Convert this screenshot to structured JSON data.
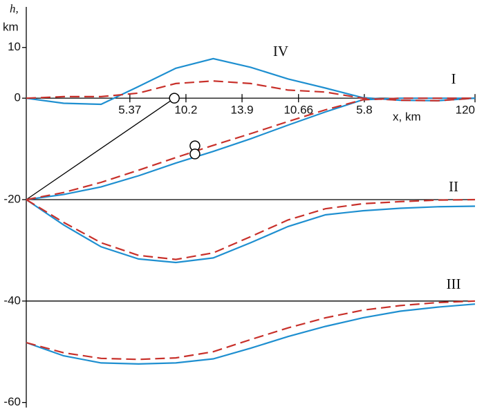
{
  "chart_data": {
    "type": "line",
    "y_label": [
      "h,",
      "km"
    ],
    "x_label": "x, km",
    "annotations": [
      "I",
      "II",
      "III",
      "IV"
    ],
    "xlim": [
      0,
      120
    ],
    "ylim": [
      -61,
      18
    ],
    "yticks": [
      -60,
      -40,
      -20,
      0,
      10
    ],
    "xticks": [
      {
        "value": 27.7,
        "label": "5.37"
      },
      {
        "value": 42.7,
        "label": "10.2"
      },
      {
        "value": 57.7,
        "label": "13.9"
      },
      {
        "value": 72.8,
        "label": "10.66"
      },
      {
        "value": 90.4,
        "label": "5.8"
      },
      120
    ],
    "hlines": [
      0,
      -20,
      -40
    ],
    "segment": {
      "x": [
        0,
        39.6
      ],
      "y": [
        -20,
        0
      ]
    },
    "markers": {
      "x": [
        39.6,
        45.1,
        45.1
      ],
      "y": [
        0,
        -9.4,
        -11
      ]
    },
    "x": [
      0,
      10,
      20,
      30,
      40,
      50,
      60,
      70,
      80,
      90,
      100,
      110,
      120
    ],
    "series": [
      {
        "color": "#1e8fd0",
        "dashed": false,
        "values": [
          0,
          -1,
          -1.2,
          2.3,
          5.9,
          7.8,
          6.1,
          3.8,
          2,
          0.1,
          -0.4,
          -0.5,
          0
        ]
      },
      {
        "color": "#c8302a",
        "dashed": true,
        "values": [
          0,
          0.3,
          0.3,
          1,
          2.9,
          3.4,
          2.9,
          1.6,
          1.2,
          0,
          -0.4,
          -0.5,
          0
        ]
      },
      {
        "color": "#1e8fd0",
        "dashed": false,
        "values": [
          -20,
          -19,
          -17.5,
          -15.3,
          -12.8,
          -10.5,
          -8,
          -5.3,
          -2.7,
          -0.3,
          0,
          0,
          0
        ]
      },
      {
        "color": "#c8302a",
        "dashed": true,
        "values": [
          -20,
          -18.6,
          -16.6,
          -14.2,
          -11.7,
          -9.3,
          -7,
          -4.6,
          -2.3,
          -0.3,
          0,
          0,
          0
        ]
      },
      {
        "color": "#1e8fd0",
        "dashed": false,
        "values": [
          -20,
          -25,
          -29.3,
          -31.7,
          -32.4,
          -31.5,
          -28.5,
          -25.3,
          -23,
          -22.2,
          -21.7,
          -21.4,
          -21.3
        ]
      },
      {
        "color": "#c8302a",
        "dashed": true,
        "values": [
          -20,
          -24.5,
          -28.5,
          -31,
          -31.8,
          -30.5,
          -27.3,
          -24,
          -21.8,
          -20.8,
          -20.4,
          -20.1,
          -20
        ]
      },
      {
        "color": "#1e8fd0",
        "dashed": false,
        "values": [
          -48.2,
          -50.8,
          -52.2,
          -52.4,
          -52.2,
          -51.4,
          -49.3,
          -47,
          -45,
          -43.3,
          -42,
          -41.2,
          -40.6
        ]
      },
      {
        "color": "#c8302a",
        "dashed": true,
        "values": [
          -48.2,
          -50.2,
          -51.3,
          -51.5,
          -51.2,
          -50,
          -47.6,
          -45.3,
          -43.3,
          -41.8,
          -40.9,
          -40.3,
          -40
        ]
      }
    ]
  }
}
